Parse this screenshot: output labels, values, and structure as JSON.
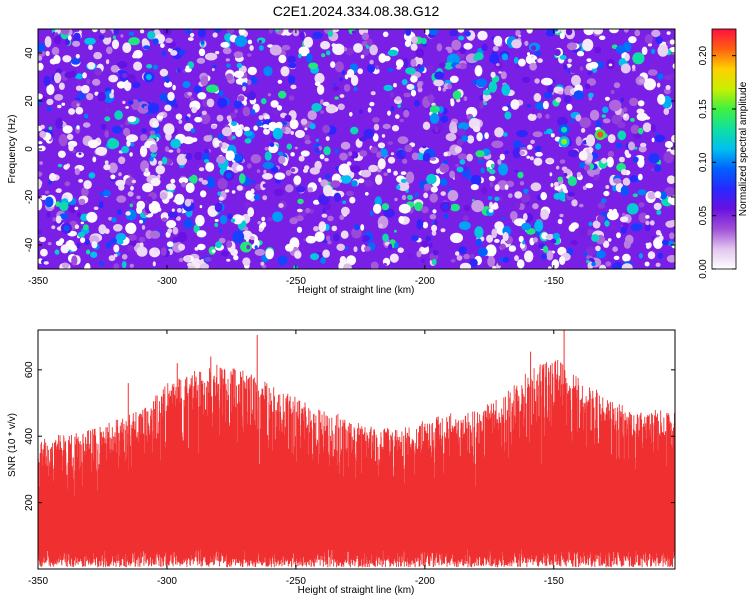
{
  "title": "C2E1.2024.334.08.38.G12",
  "colors": {
    "snr_line": "#f03030",
    "colormap": [
      "#ffffff",
      "#e2c6ee",
      "#a050d8",
      "#6a10e0",
      "#2828ff",
      "#0060ff",
      "#00c0f0",
      "#10e0a0",
      "#40f040",
      "#c8f000",
      "#ffd000",
      "#ff6010",
      "#ff1040"
    ]
  },
  "chart_data": [
    {
      "type": "heatmap",
      "xlabel": "Height of straight line (km)",
      "ylabel": "Frequency (Hz)",
      "xlim": [
        -350,
        -103
      ],
      "ylim": [
        -50,
        50
      ],
      "x_ticks": [
        -350,
        -300,
        -250,
        -200,
        -150
      ],
      "y_ticks": [
        -40,
        -20,
        0,
        20,
        40
      ],
      "colorbar": {
        "label": "Normalized spectral amplitude",
        "range": [
          0,
          0.225
        ],
        "ticks": [
          "0.00",
          "0.05",
          "0.10",
          "0.15",
          "0.20"
        ]
      },
      "hotspots": [
        {
          "x": -132,
          "y": 6,
          "value": 0.21
        },
        {
          "x": -146,
          "y": 3,
          "value": 0.16
        },
        {
          "x": -146,
          "y": 8,
          "value": 0.13
        },
        {
          "x": -307,
          "y": 30,
          "value": 0.11
        },
        {
          "x": -339,
          "y": -33,
          "value": 0.09
        },
        {
          "x": -276,
          "y": -11,
          "value": 0.09
        },
        {
          "x": -192,
          "y": -24,
          "value": 0.08
        }
      ]
    },
    {
      "type": "line",
      "xlabel": "Height of straight line (km)",
      "ylabel": "SNR (10 * v/v)",
      "xlim": [
        -350,
        -103
      ],
      "ylim": [
        0,
        720
      ],
      "x_ticks": [
        -350,
        -300,
        -250,
        -200,
        -150
      ],
      "y_ticks": [
        200,
        400,
        600
      ],
      "series": [
        {
          "envelope_x": [
            -350,
            -330,
            -310,
            -300,
            -290,
            -280,
            -270,
            -260,
            -250,
            -240,
            -230,
            -220,
            -210,
            -200,
            -190,
            -180,
            -170,
            -160,
            -150,
            -140,
            -130,
            -120,
            -110,
            -103
          ],
          "envelope_y": [
            400,
            420,
            480,
            560,
            600,
            620,
            600,
            560,
            520,
            480,
            460,
            430,
            420,
            450,
            470,
            480,
            520,
            600,
            640,
            580,
            520,
            480,
            480,
            470
          ],
          "peaks": [
            {
              "x": -146,
              "y": 720
            },
            {
              "x": -265,
              "y": 705
            },
            {
              "x": -159,
              "y": 655
            },
            {
              "x": -283,
              "y": 640
            },
            {
              "x": -296,
              "y": 620
            },
            {
              "x": -315,
              "y": 560
            }
          ]
        }
      ]
    }
  ]
}
